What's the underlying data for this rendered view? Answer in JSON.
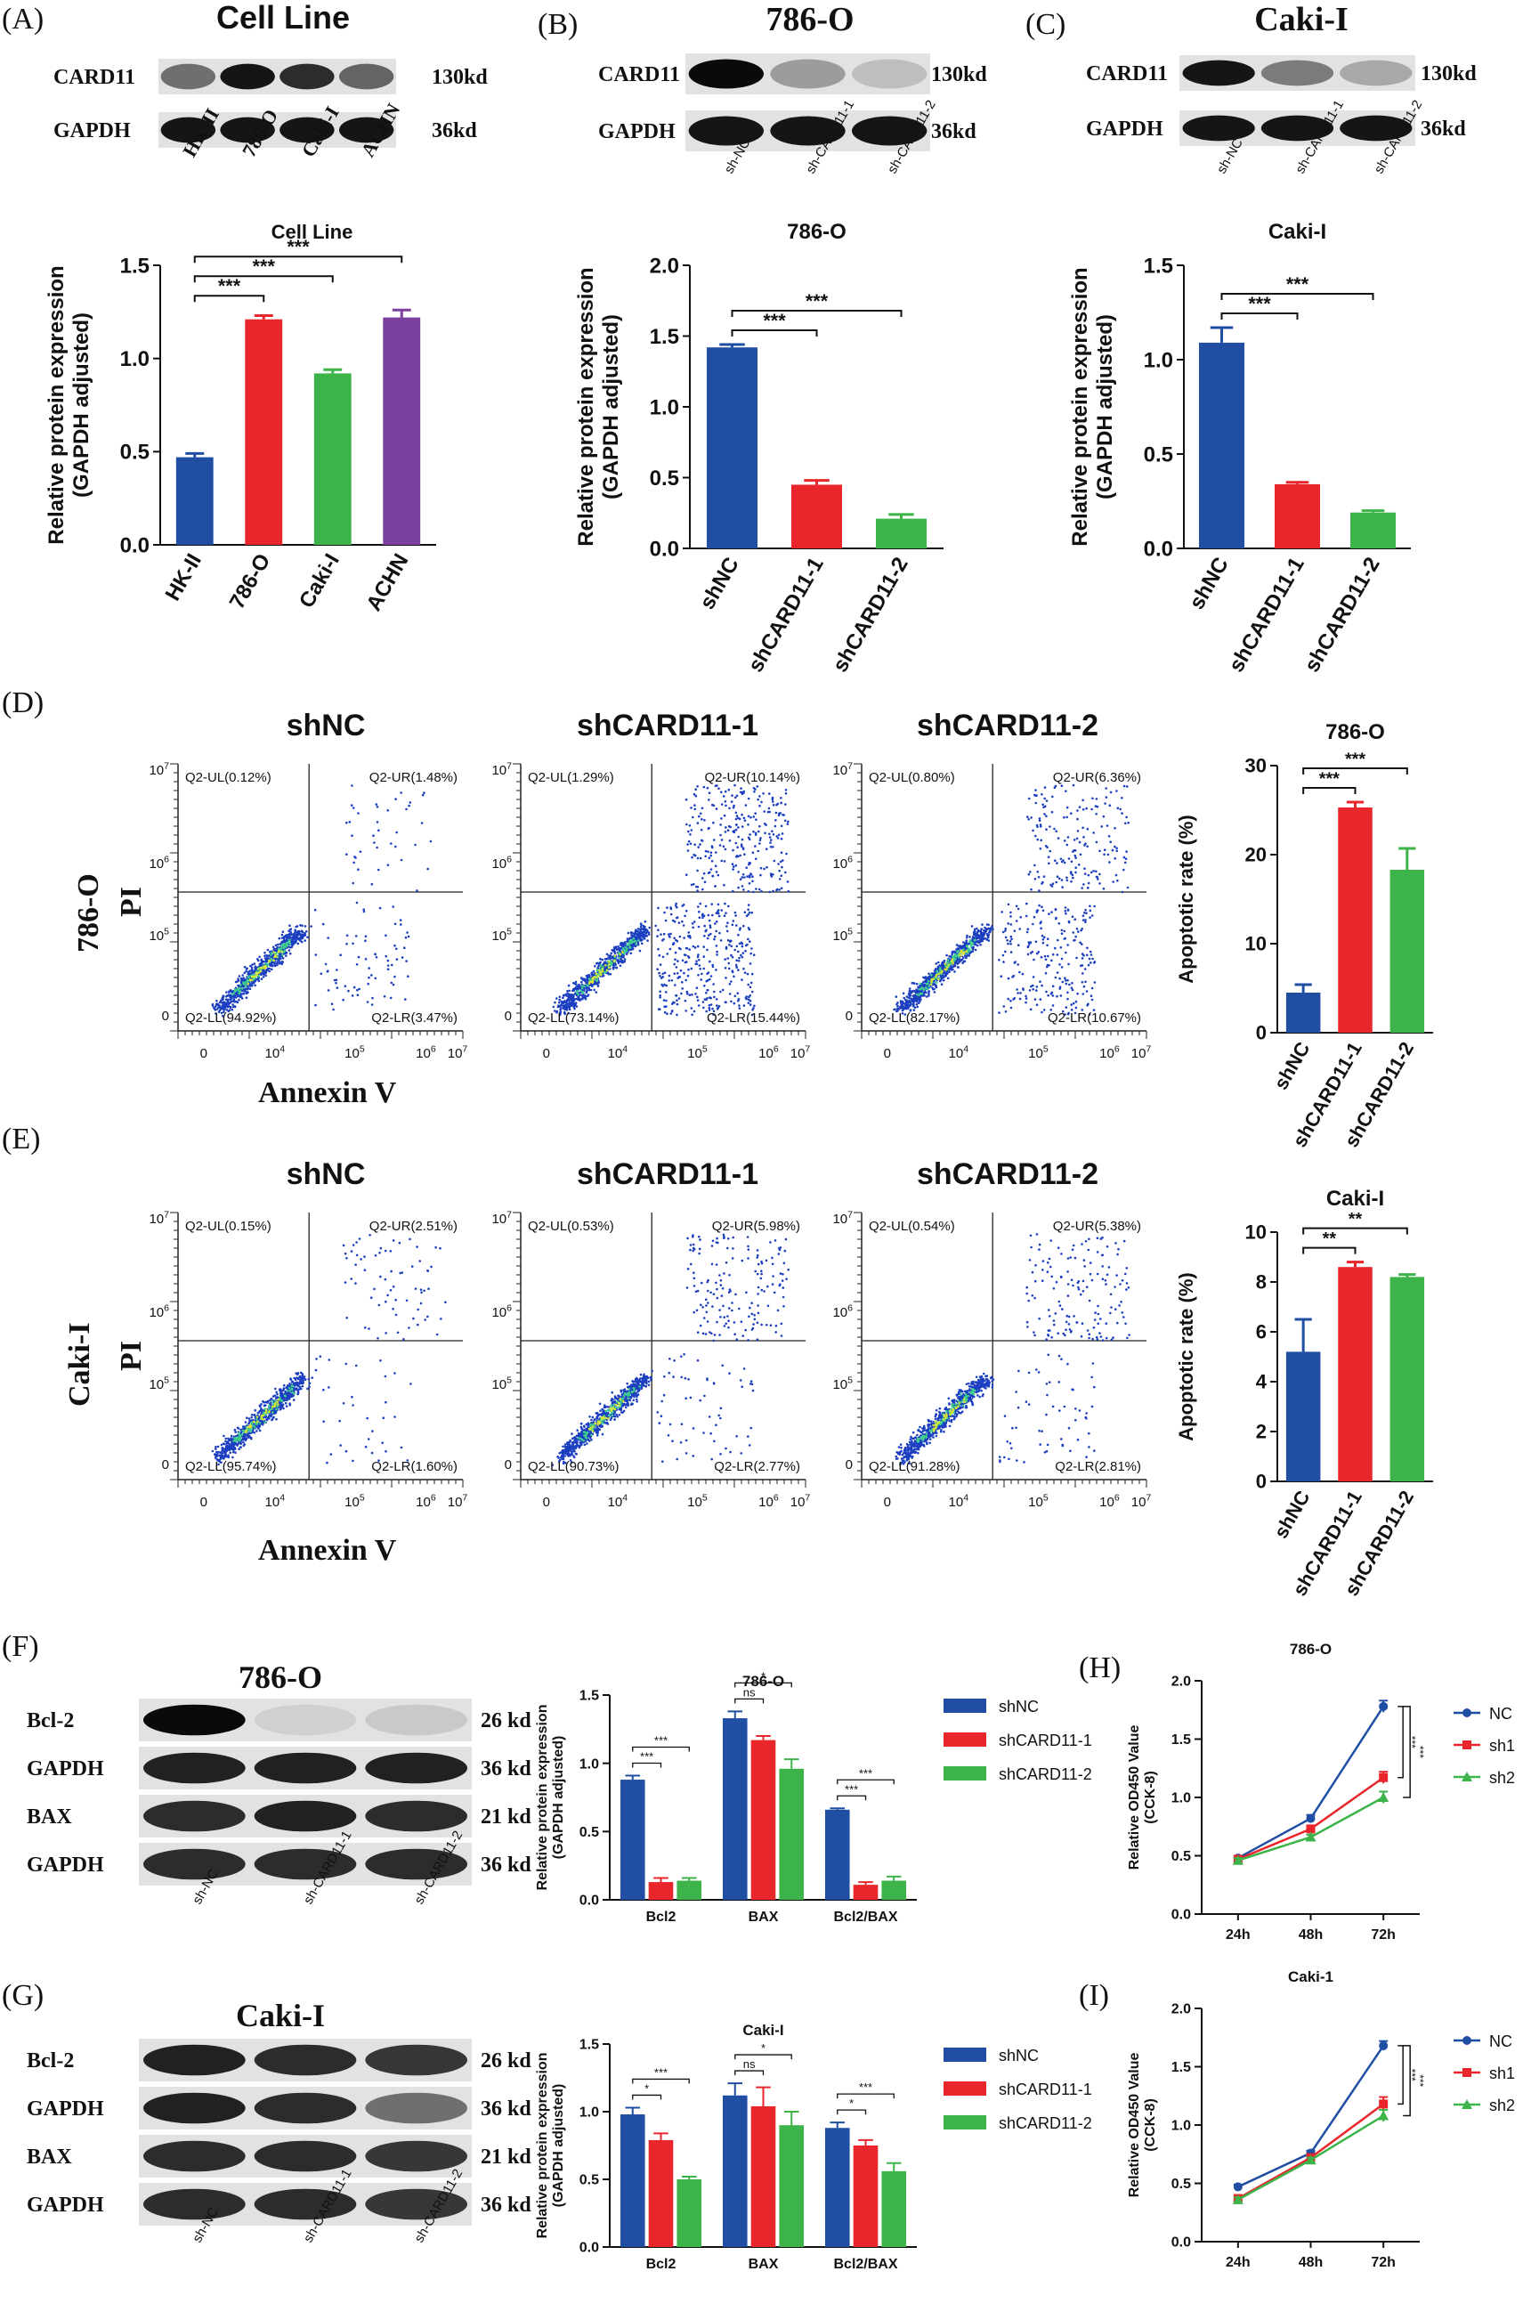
{
  "panel_letters": [
    "(A)",
    "(B)",
    "(C)",
    "(D)",
    "(E)",
    "(F)",
    "(G)",
    "(H)",
    "(I)"
  ],
  "blots": {
    "A": {
      "title": "Cell Line",
      "rows": [
        "CARD11",
        "GAPDH"
      ],
      "sizes": [
        "130kd",
        "36kd"
      ],
      "lanes": [
        "HK-II",
        "786-O",
        "Caki-I",
        "ACHN"
      ],
      "intensity": [
        [
          0.55,
          0.95,
          0.85,
          0.6
        ],
        [
          0.95,
          0.95,
          0.95,
          0.95
        ]
      ]
    },
    "B": {
      "title": "786-O",
      "rows": [
        "CARD11",
        "GAPDH"
      ],
      "sizes": [
        "130kd",
        "36kd"
      ],
      "lanes": [
        "sh-NC",
        "sh-CARD11-1",
        "sh-CARD11-2"
      ],
      "intensity": [
        [
          1.0,
          0.35,
          0.2
        ],
        [
          0.95,
          0.95,
          0.95
        ]
      ]
    },
    "C": {
      "title": "Caki-I",
      "rows": [
        "CARD11",
        "GAPDH"
      ],
      "sizes": [
        "130kd",
        "36kd"
      ],
      "lanes": [
        "sh-NC",
        "sh-CARD11-1",
        "sh-CARD11-2"
      ],
      "intensity": [
        [
          0.95,
          0.5,
          0.3
        ],
        [
          0.95,
          0.95,
          0.95
        ]
      ]
    },
    "F": {
      "title": "786-O",
      "rows": [
        "Bcl-2",
        "GAPDH",
        "BAX",
        "GAPDH"
      ],
      "sizes": [
        "26 kd",
        "36 kd",
        "21 kd",
        "36 kd"
      ],
      "lanes": [
        "sh-NC",
        "sh-CARD11-1",
        "sh-CARD11-2"
      ],
      "intensity": [
        [
          1.0,
          0.12,
          0.15
        ],
        [
          0.9,
          0.9,
          0.9
        ],
        [
          0.85,
          0.9,
          0.85
        ],
        [
          0.85,
          0.85,
          0.85
        ]
      ]
    },
    "G": {
      "title": "Caki-I",
      "rows": [
        "Bcl-2",
        "GAPDH",
        "BAX",
        "GAPDH"
      ],
      "sizes": [
        "26 kd",
        "36 kd",
        "21 kd",
        "36 kd"
      ],
      "lanes": [
        "sh-NC",
        "sh-CARD11-1",
        "sh-CARD11-2"
      ],
      "intensity": [
        [
          0.9,
          0.85,
          0.8
        ],
        [
          0.9,
          0.85,
          0.55
        ],
        [
          0.85,
          0.85,
          0.8
        ],
        [
          0.85,
          0.85,
          0.8
        ]
      ]
    }
  },
  "flow": {
    "xlabel": "Annexin V",
    "ylabel": "PI",
    "row_labels": [
      "786-O",
      "Caki-I"
    ],
    "col_titles": [
      "shNC",
      "shCARD11-1",
      "shCARD11-2"
    ],
    "xticks": [
      "0",
      "10^4",
      "10^5",
      "10^6",
      "10^7"
    ],
    "yticks": [
      "0",
      "10^5",
      "10^6",
      "10^7"
    ],
    "quadrants": [
      [
        {
          "UL": "Q2-UL(0.12%)",
          "UR": "Q2-UR(1.48%)",
          "LL": "Q2-LL(94.92%)",
          "LR": "Q2-LR(3.47%)"
        },
        {
          "UL": "Q2-UL(1.29%)",
          "UR": "Q2-UR(10.14%)",
          "LL": "Q2-LL(73.14%)",
          "LR": "Q2-LR(15.44%)"
        },
        {
          "UL": "Q2-UL(0.80%)",
          "UR": "Q2-UR(6.36%)",
          "LL": "Q2-LL(82.17%)",
          "LR": "Q2-LR(10.67%)"
        }
      ],
      [
        {
          "UL": "Q2-UL(0.15%)",
          "UR": "Q2-UR(2.51%)",
          "LL": "Q2-LL(95.74%)",
          "LR": "Q2-LR(1.60%)"
        },
        {
          "UL": "Q2-UL(0.53%)",
          "UR": "Q2-UR(5.98%)",
          "LL": "Q2-LL(90.73%)",
          "LR": "Q2-LR(2.77%)"
        },
        {
          "UL": "Q2-UL(0.54%)",
          "UR": "Q2-UR(5.38%)",
          "LL": "Q2-LL(91.28%)",
          "LR": "Q2-LR(2.81%)"
        }
      ]
    ]
  },
  "colors": {
    "blue": "#1f4ea3",
    "red": "#e8262b",
    "green": "#3cb44a",
    "purple": "#7b3f9e",
    "gray": "#bfbfbf"
  },
  "chart_data": [
    {
      "id": "A",
      "type": "bar",
      "title": "Cell Line",
      "ylabel": "Relative protein expression\n(GAPDH adjusted)",
      "ylim": [
        0,
        1.5
      ],
      "yticks": [
        "0.0",
        "0.5",
        "1.0",
        "1.5"
      ],
      "categories": [
        "HK-II",
        "786-O",
        "Caki-I",
        "ACHN"
      ],
      "values": [
        0.47,
        1.21,
        0.92,
        1.22
      ],
      "errors": [
        0.02,
        0.02,
        0.02,
        0.04
      ],
      "colors": [
        "#1f4ea3",
        "#e8262b",
        "#3cb44a",
        "#7b3f9e"
      ],
      "sig": [
        {
          "from": 0,
          "to": 1,
          "label": "***"
        },
        {
          "from": 0,
          "to": 2,
          "label": "***"
        },
        {
          "from": 0,
          "to": 3,
          "label": "***"
        }
      ]
    },
    {
      "id": "B",
      "type": "bar",
      "title": "786-O",
      "ylabel": "Relative protein expression\n(GAPDH adjusted)",
      "ylim": [
        0,
        2.0
      ],
      "yticks": [
        "0.0",
        "0.5",
        "1.0",
        "1.5",
        "2.0"
      ],
      "categories": [
        "shNC",
        "shCARD11-1",
        "shCARD11-2"
      ],
      "values": [
        1.42,
        0.45,
        0.21
      ],
      "errors": [
        0.02,
        0.03,
        0.03
      ],
      "colors": [
        "#1f4ea3",
        "#e8262b",
        "#3cb44a"
      ],
      "sig": [
        {
          "from": 0,
          "to": 1,
          "label": "***"
        },
        {
          "from": 0,
          "to": 2,
          "label": "***"
        }
      ]
    },
    {
      "id": "C",
      "type": "bar",
      "title": "Caki-I",
      "ylabel": "Relative protein expression\n(GAPDH adjusted)",
      "ylim": [
        0,
        1.5
      ],
      "yticks": [
        "0.0",
        "0.5",
        "1.0",
        "1.5"
      ],
      "categories": [
        "shNC",
        "shCARD11-1",
        "shCARD11-2"
      ],
      "values": [
        1.09,
        0.34,
        0.19
      ],
      "errors": [
        0.08,
        0.01,
        0.01
      ],
      "colors": [
        "#1f4ea3",
        "#e8262b",
        "#3cb44a"
      ],
      "sig": [
        {
          "from": 0,
          "to": 1,
          "label": "***"
        },
        {
          "from": 0,
          "to": 2,
          "label": "***"
        }
      ]
    },
    {
      "id": "D",
      "type": "bar",
      "title": "786-O",
      "ylabel": "Apoptotic rate (%)",
      "ylim": [
        0,
        30
      ],
      "yticks": [
        "0",
        "10",
        "20",
        "30"
      ],
      "categories": [
        "shNC",
        "shCARD11-1",
        "shCARD11-2"
      ],
      "values": [
        4.5,
        25.3,
        18.3
      ],
      "errors": [
        0.9,
        0.6,
        2.4
      ],
      "colors": [
        "#1f4ea3",
        "#e8262b",
        "#3cb44a"
      ],
      "sig": [
        {
          "from": 0,
          "to": 1,
          "label": "***"
        },
        {
          "from": 0,
          "to": 2,
          "label": "***"
        }
      ]
    },
    {
      "id": "E",
      "type": "bar",
      "title": "Caki-I",
      "ylabel": "Apoptotic rate (%)",
      "ylim": [
        0,
        10
      ],
      "yticks": [
        "0",
        "2",
        "4",
        "6",
        "8",
        "10"
      ],
      "categories": [
        "shNC",
        "shCARD11-1",
        "shCARD11-2"
      ],
      "values": [
        5.2,
        8.6,
        8.2
      ],
      "errors": [
        1.3,
        0.2,
        0.1
      ],
      "colors": [
        "#1f4ea3",
        "#e8262b",
        "#3cb44a"
      ],
      "sig": [
        {
          "from": 0,
          "to": 1,
          "label": "**"
        },
        {
          "from": 0,
          "to": 2,
          "label": "**"
        }
      ]
    },
    {
      "id": "F",
      "type": "bar",
      "title": "786-O",
      "ylabel": "Relative protein expression\n(GAPDH adjusted)",
      "ylim": [
        0,
        1.5
      ],
      "yticks": [
        "0.0",
        "0.5",
        "1.0",
        "1.5"
      ],
      "categories": [
        "Bcl2",
        "BAX",
        "Bcl2/BAX"
      ],
      "series": [
        {
          "name": "shNC",
          "values": [
            0.88,
            1.33,
            0.66
          ],
          "errors": [
            0.03,
            0.05,
            0.01
          ]
        },
        {
          "name": "shCARD11-1",
          "values": [
            0.13,
            1.17,
            0.11
          ],
          "errors": [
            0.03,
            0.03,
            0.02
          ]
        },
        {
          "name": "shCARD11-2",
          "values": [
            0.14,
            0.96,
            0.14
          ],
          "errors": [
            0.02,
            0.07,
            0.03
          ]
        }
      ],
      "sig": [
        {
          "cat": 0,
          "marks": [
            "***",
            "***"
          ]
        },
        {
          "cat": 1,
          "marks": [
            "ns",
            "*"
          ]
        },
        {
          "cat": 2,
          "marks": [
            "***",
            "***"
          ]
        }
      ]
    },
    {
      "id": "G",
      "type": "bar",
      "title": "Caki-I",
      "ylabel": "Relative protein expression\n(GAPDH adjusted)",
      "ylim": [
        0,
        1.5
      ],
      "yticks": [
        "0.0",
        "0.5",
        "1.0",
        "1.5"
      ],
      "categories": [
        "Bcl2",
        "BAX",
        "Bcl2/BAX"
      ],
      "series": [
        {
          "name": "shNC",
          "values": [
            0.98,
            1.12,
            0.88
          ],
          "errors": [
            0.05,
            0.09,
            0.04
          ]
        },
        {
          "name": "shCARD11-1",
          "values": [
            0.79,
            1.04,
            0.75
          ],
          "errors": [
            0.05,
            0.14,
            0.04
          ]
        },
        {
          "name": "shCARD11-2",
          "values": [
            0.5,
            0.9,
            0.56
          ],
          "errors": [
            0.02,
            0.1,
            0.06
          ]
        }
      ],
      "sig": [
        {
          "cat": 0,
          "marks": [
            "*",
            "***"
          ]
        },
        {
          "cat": 1,
          "marks": [
            "ns",
            "*"
          ]
        },
        {
          "cat": 2,
          "marks": [
            "*",
            "***"
          ]
        }
      ]
    },
    {
      "id": "H",
      "type": "line",
      "title": "786-O",
      "ylabel": "Relative OD450 Value\n(CCK-8)",
      "ylim": [
        0,
        2.0
      ],
      "yticks": [
        "0.0",
        "0.5",
        "1.0",
        "1.5",
        "2.0"
      ],
      "x": [
        "24h",
        "48h",
        "72h"
      ],
      "series": [
        {
          "name": "NC",
          "values": [
            0.48,
            0.82,
            1.78
          ],
          "errors": [
            0.02,
            0.03,
            0.05
          ]
        },
        {
          "name": "sh1",
          "values": [
            0.47,
            0.73,
            1.17
          ],
          "errors": [
            0.02,
            0.02,
            0.05
          ]
        },
        {
          "name": "sh2",
          "values": [
            0.46,
            0.66,
            1.0
          ],
          "errors": [
            0.02,
            0.02,
            0.05
          ]
        }
      ],
      "sig": [
        "***",
        "***"
      ]
    },
    {
      "id": "I",
      "type": "line",
      "title": "Caki-1",
      "ylabel": "Relative OD450 Value\n(CCK-8)",
      "ylim": [
        0,
        2.0
      ],
      "yticks": [
        "0.0",
        "0.5",
        "1.0",
        "1.5",
        "2.0"
      ],
      "x": [
        "24h",
        "48h",
        "72h"
      ],
      "series": [
        {
          "name": "NC",
          "values": [
            0.47,
            0.76,
            1.68
          ],
          "errors": [
            0.02,
            0.02,
            0.04
          ]
        },
        {
          "name": "sh1",
          "values": [
            0.37,
            0.72,
            1.18
          ],
          "errors": [
            0.02,
            0.02,
            0.06
          ]
        },
        {
          "name": "sh2",
          "values": [
            0.36,
            0.7,
            1.08
          ],
          "errors": [
            0.02,
            0.02,
            0.05
          ]
        }
      ],
      "sig": [
        "***",
        "***"
      ]
    }
  ]
}
